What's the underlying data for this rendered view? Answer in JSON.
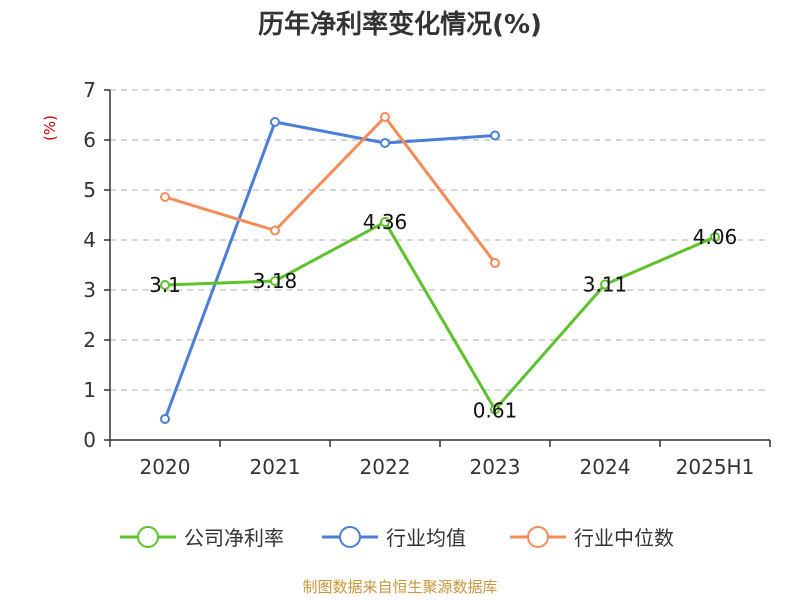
{
  "chart_data": {
    "type": "line",
    "title": "历年净利率变化情况(%)",
    "ylabel": "(%)",
    "xlabel": "",
    "categories": [
      "2020",
      "2021",
      "2022",
      "2023",
      "2024",
      "2025H1"
    ],
    "ylim": [
      0,
      7
    ],
    "yticks": [
      0,
      1,
      2,
      3,
      4,
      5,
      6,
      7
    ],
    "grid": true,
    "legend_position": "bottom",
    "series": [
      {
        "name": "公司净利率",
        "color": "#5ec22c",
        "values": [
          3.1,
          3.18,
          4.36,
          0.61,
          3.11,
          4.06
        ],
        "labels": [
          "3.1",
          "3.18",
          "4.36",
          "0.61",
          "3.11",
          "4.06"
        ],
        "show_labels": true
      },
      {
        "name": "行业均值",
        "color": "#4a7fd8",
        "values": [
          0.42,
          6.36,
          5.94,
          6.09,
          null,
          null
        ],
        "show_labels": false
      },
      {
        "name": "行业中位数",
        "color": "#f68b58",
        "values": [
          4.86,
          4.19,
          6.46,
          3.54,
          null,
          null
        ],
        "show_labels": false
      }
    ]
  },
  "source_text": "制图数据来自恒生聚源数据库"
}
